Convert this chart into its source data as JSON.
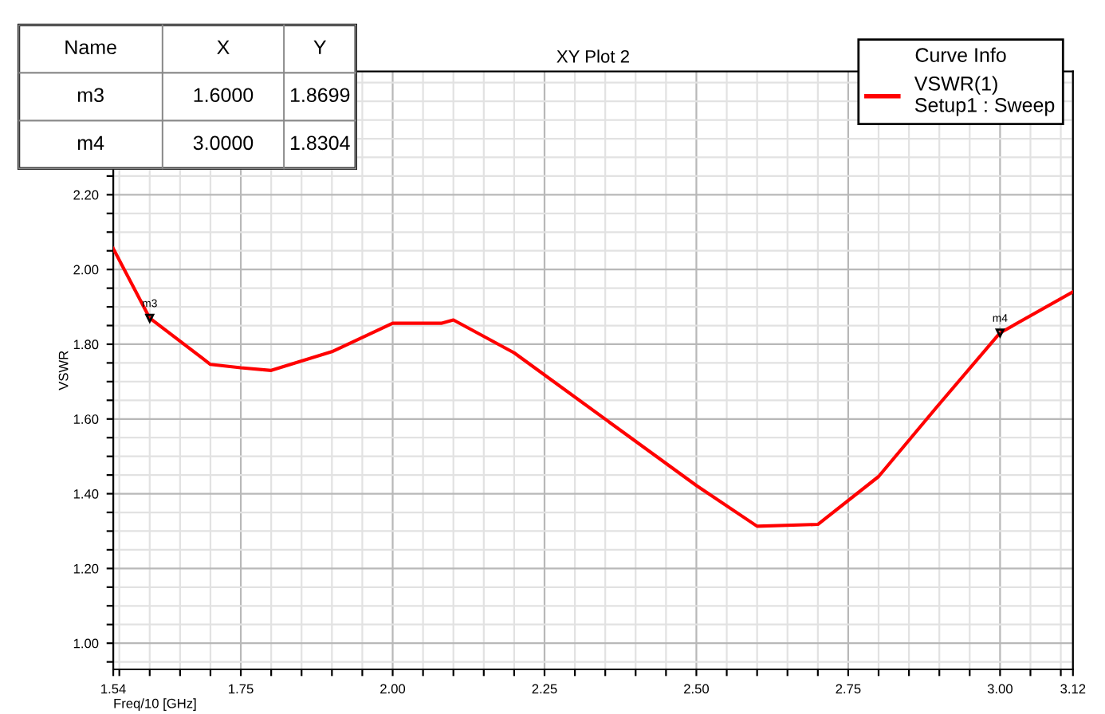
{
  "chart_data": {
    "type": "line",
    "title": "XY Plot 2",
    "xlabel": "Freq/10 [GHz]",
    "ylabel": "VSWR",
    "legend_title": "Curve Info",
    "x": [
      1.54,
      1.6,
      1.7,
      1.75,
      1.8,
      1.9,
      2.0,
      2.08,
      2.1,
      2.2,
      2.5,
      2.6,
      2.7,
      2.8,
      2.9,
      3.0,
      3.12
    ],
    "series": [
      {
        "name": "VSWR(1)\nSetup1 : Sweep",
        "color": "#ff0000",
        "values": [
          2.056,
          1.8699,
          1.746,
          1.737,
          1.73,
          1.78,
          1.856,
          1.856,
          1.865,
          1.777,
          1.422,
          1.313,
          1.318,
          1.446,
          1.64,
          1.8304,
          1.94
        ]
      }
    ],
    "annotations": [
      {
        "text": "m3",
        "x": 1.6,
        "y": 1.8699
      },
      {
        "text": "m4",
        "x": 3.0,
        "y": 1.8304
      },
      "Name",
      "X",
      "Y",
      "m3",
      "1.6000",
      "1.8699",
      "m4",
      "3.0000",
      "1.8304"
    ],
    "xlim": [
      1.54,
      3.12
    ],
    "ylim": [
      0.93,
      2.53
    ],
    "xticks": [
      {
        "value": 1.54,
        "label": "1.54"
      },
      {
        "value": 1.55,
        "label": null
      },
      {
        "value": 1.6,
        "label": null
      },
      {
        "value": 1.65,
        "label": null
      },
      {
        "value": 1.7,
        "label": null
      },
      {
        "value": 1.75,
        "label": "1.75"
      },
      {
        "value": 1.8,
        "label": null
      },
      {
        "value": 1.85,
        "label": null
      },
      {
        "value": 1.9,
        "label": null
      },
      {
        "value": 1.95,
        "label": null
      },
      {
        "value": 2.0,
        "label": "2.00"
      },
      {
        "value": 2.05,
        "label": null
      },
      {
        "value": 2.1,
        "label": null
      },
      {
        "value": 2.15,
        "label": null
      },
      {
        "value": 2.2,
        "label": null
      },
      {
        "value": 2.25,
        "label": "2.25"
      },
      {
        "value": 2.3,
        "label": null
      },
      {
        "value": 2.35,
        "label": null
      },
      {
        "value": 2.4,
        "label": null
      },
      {
        "value": 2.45,
        "label": null
      },
      {
        "value": 2.5,
        "label": "2.50"
      },
      {
        "value": 2.55,
        "label": null
      },
      {
        "value": 2.6,
        "label": null
      },
      {
        "value": 2.65,
        "label": null
      },
      {
        "value": 2.7,
        "label": null
      },
      {
        "value": 2.75,
        "label": "2.75"
      },
      {
        "value": 2.8,
        "label": null
      },
      {
        "value": 2.85,
        "label": null
      },
      {
        "value": 2.9,
        "label": null
      },
      {
        "value": 2.95,
        "label": null
      },
      {
        "value": 3.0,
        "label": "3.00"
      },
      {
        "value": 3.05,
        "label": null
      },
      {
        "value": 3.1,
        "label": null
      },
      {
        "value": 3.12,
        "label": "3.12"
      }
    ],
    "yticks": [
      {
        "value": 0.95,
        "label": null
      },
      {
        "value": 1.0,
        "label": "1.00"
      },
      {
        "value": 1.05,
        "label": null
      },
      {
        "value": 1.1,
        "label": null
      },
      {
        "value": 1.15,
        "label": null
      },
      {
        "value": 1.2,
        "label": "1.20"
      },
      {
        "value": 1.25,
        "label": null
      },
      {
        "value": 1.3,
        "label": null
      },
      {
        "value": 1.35,
        "label": null
      },
      {
        "value": 1.4,
        "label": "1.40"
      },
      {
        "value": 1.45,
        "label": null
      },
      {
        "value": 1.5,
        "label": null
      },
      {
        "value": 1.55,
        "label": null
      },
      {
        "value": 1.6,
        "label": "1.60"
      },
      {
        "value": 1.65,
        "label": null
      },
      {
        "value": 1.7,
        "label": null
      },
      {
        "value": 1.75,
        "label": null
      },
      {
        "value": 1.8,
        "label": "1.80"
      },
      {
        "value": 1.85,
        "label": null
      },
      {
        "value": 1.9,
        "label": null
      },
      {
        "value": 1.95,
        "label": null
      },
      {
        "value": 2.0,
        "label": "2.00"
      },
      {
        "value": 2.05,
        "label": null
      },
      {
        "value": 2.1,
        "label": null
      },
      {
        "value": 2.15,
        "label": null
      },
      {
        "value": 2.2,
        "label": "2.20"
      },
      {
        "value": 2.25,
        "label": null
      },
      {
        "value": 2.3,
        "label": null
      },
      {
        "value": 2.35,
        "label": null
      },
      {
        "value": 2.4,
        "label": null
      },
      {
        "value": 2.45,
        "label": null
      },
      {
        "value": 2.5,
        "label": null
      }
    ],
    "grid": true,
    "legend": "top right",
    "marker": "none",
    "line_style": "solid"
  }
}
